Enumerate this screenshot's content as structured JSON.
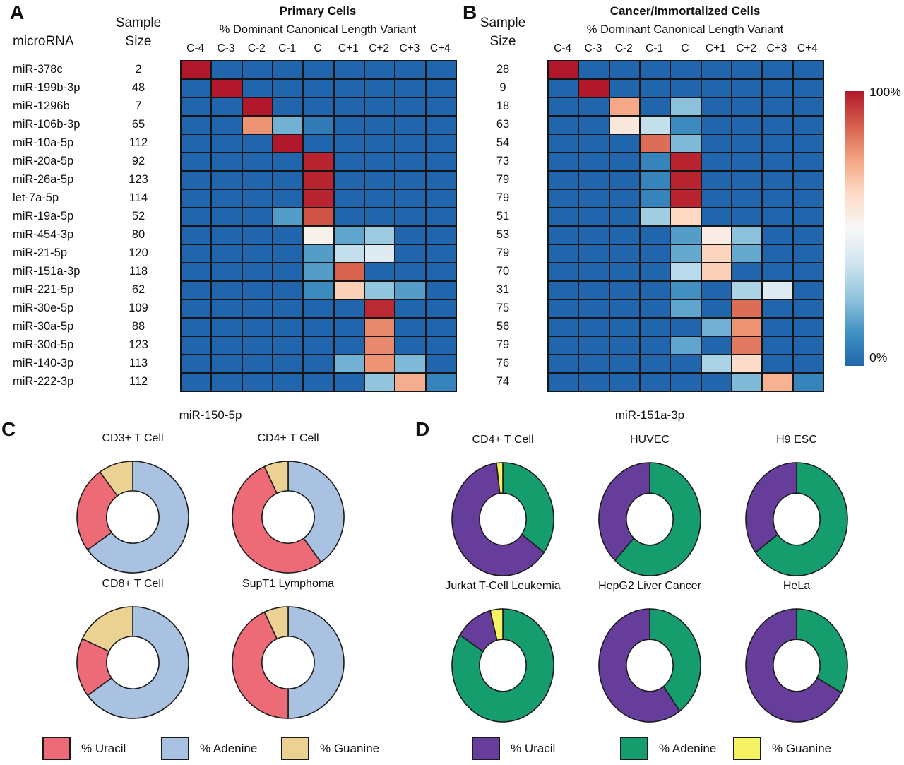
{
  "figure": {
    "panels": {
      "a": {
        "letter": "A",
        "mirna_header": "microRNA",
        "size_header": "Sample\nSize"
      },
      "b": {
        "letter": "B",
        "size_header": "Sample\nSize"
      },
      "c": {
        "letter": "C"
      },
      "d": {
        "letter": "D"
      }
    },
    "colorbar": {
      "max_label": "100%",
      "min_label": "0%"
    }
  },
  "chart_data": [
    {
      "type": "heatmap",
      "panel": "A",
      "title": "Primary Cells",
      "subtitle": "% Dominant Canonical Length Variant",
      "columns": [
        "C-4",
        "C-3",
        "C-2",
        "C-1",
        "C",
        "C+1",
        "C+2",
        "C+3",
        "C+4"
      ],
      "scale": {
        "min": 0,
        "max": 100,
        "min_color": "#2166ac",
        "mid_color": "#f7f7f7",
        "max_color": "#b2182b"
      },
      "rows": [
        {
          "mirna": "miR-378c",
          "sample_size": 2,
          "values": [
            100,
            0,
            0,
            0,
            0,
            0,
            0,
            0,
            0
          ]
        },
        {
          "mirna": "miR-199b-3p",
          "sample_size": 48,
          "values": [
            0,
            100,
            0,
            0,
            0,
            0,
            0,
            0,
            0
          ]
        },
        {
          "mirna": "miR-1296b",
          "sample_size": 7,
          "values": [
            0,
            0,
            100,
            0,
            0,
            0,
            0,
            0,
            0
          ]
        },
        {
          "mirna": "miR-106b-3p",
          "sample_size": 65,
          "values": [
            0,
            0,
            78,
            20,
            6,
            0,
            0,
            0,
            0
          ]
        },
        {
          "mirna": "miR-10a-5p",
          "sample_size": 112,
          "values": [
            0,
            0,
            0,
            100,
            0,
            0,
            0,
            0,
            0
          ]
        },
        {
          "mirna": "miR-20a-5p",
          "sample_size": 92,
          "values": [
            0,
            0,
            0,
            0,
            98,
            0,
            0,
            0,
            0
          ]
        },
        {
          "mirna": "miR-26a-5p",
          "sample_size": 123,
          "values": [
            0,
            0,
            0,
            0,
            98,
            0,
            0,
            0,
            0
          ]
        },
        {
          "mirna": "let-7a-5p",
          "sample_size": 114,
          "values": [
            0,
            0,
            0,
            0,
            98,
            0,
            0,
            0,
            0
          ]
        },
        {
          "mirna": "miR-19a-5p",
          "sample_size": 52,
          "values": [
            0,
            0,
            0,
            15,
            90,
            0,
            0,
            0,
            0
          ]
        },
        {
          "mirna": "miR-454-3p",
          "sample_size": 80,
          "values": [
            0,
            0,
            0,
            0,
            53,
            17,
            27,
            0,
            0
          ]
        },
        {
          "mirna": "miR-21-5p",
          "sample_size": 120,
          "values": [
            0,
            0,
            0,
            0,
            15,
            35,
            42,
            0,
            0
          ]
        },
        {
          "mirna": "miR-151a-3p",
          "sample_size": 118,
          "values": [
            0,
            0,
            0,
            0,
            15,
            87,
            0,
            0,
            0
          ]
        },
        {
          "mirna": "miR-221-5p",
          "sample_size": 62,
          "values": [
            0,
            0,
            0,
            0,
            10,
            65,
            25,
            15,
            0
          ]
        },
        {
          "mirna": "miR-30e-5p",
          "sample_size": 109,
          "values": [
            0,
            0,
            0,
            0,
            0,
            0,
            97,
            0,
            0
          ]
        },
        {
          "mirna": "miR-30a-5p",
          "sample_size": 88,
          "values": [
            0,
            0,
            0,
            0,
            0,
            0,
            80,
            0,
            0
          ]
        },
        {
          "mirna": "miR-30d-5p",
          "sample_size": 123,
          "values": [
            0,
            0,
            0,
            0,
            0,
            0,
            80,
            0,
            0
          ]
        },
        {
          "mirna": "miR-140-3p",
          "sample_size": 113,
          "values": [
            0,
            0,
            0,
            0,
            0,
            20,
            78,
            22,
            0
          ]
        },
        {
          "mirna": "miR-222-3p",
          "sample_size": 112,
          "values": [
            0,
            0,
            0,
            0,
            0,
            0,
            25,
            73,
            8
          ]
        }
      ]
    },
    {
      "type": "heatmap",
      "panel": "B",
      "title": "Cancer/Immortalized Cells",
      "subtitle": "% Dominant Canonical Length Variant",
      "columns": [
        "C-4",
        "C-3",
        "C-2",
        "C-1",
        "C",
        "C+1",
        "C+2",
        "C+3",
        "C+4"
      ],
      "scale": {
        "min": 0,
        "max": 100,
        "min_color": "#2166ac",
        "mid_color": "#f7f7f7",
        "max_color": "#b2182b"
      },
      "rows": [
        {
          "mirna": "miR-378c",
          "sample_size": 28,
          "values": [
            100,
            0,
            0,
            0,
            0,
            0,
            0,
            0,
            0
          ]
        },
        {
          "mirna": "miR-199b-3p",
          "sample_size": 9,
          "values": [
            0,
            100,
            0,
            0,
            0,
            0,
            0,
            0,
            0
          ]
        },
        {
          "mirna": "miR-1296b",
          "sample_size": 18,
          "values": [
            0,
            0,
            74,
            0,
            24,
            0,
            0,
            0,
            0
          ]
        },
        {
          "mirna": "miR-106b-3p",
          "sample_size": 63,
          "values": [
            0,
            0,
            57,
            35,
            10,
            0,
            0,
            0,
            0
          ]
        },
        {
          "mirna": "miR-10a-5p",
          "sample_size": 54,
          "values": [
            0,
            0,
            0,
            85,
            22,
            0,
            0,
            0,
            0
          ]
        },
        {
          "mirna": "miR-20a-5p",
          "sample_size": 73,
          "values": [
            0,
            0,
            0,
            8,
            98,
            0,
            0,
            0,
            0
          ]
        },
        {
          "mirna": "miR-26a-5p",
          "sample_size": 79,
          "values": [
            0,
            0,
            0,
            8,
            98,
            0,
            0,
            0,
            0
          ]
        },
        {
          "mirna": "let-7a-5p",
          "sample_size": 79,
          "values": [
            0,
            0,
            0,
            8,
            98,
            0,
            0,
            0,
            0
          ]
        },
        {
          "mirna": "miR-19a-5p",
          "sample_size": 51,
          "values": [
            0,
            0,
            0,
            28,
            63,
            0,
            0,
            0,
            0
          ]
        },
        {
          "mirna": "miR-454-3p",
          "sample_size": 53,
          "values": [
            0,
            0,
            0,
            0,
            15,
            55,
            24,
            0,
            0
          ]
        },
        {
          "mirna": "miR-21-5p",
          "sample_size": 79,
          "values": [
            0,
            0,
            0,
            0,
            18,
            64,
            18,
            0,
            0
          ]
        },
        {
          "mirna": "miR-151a-3p",
          "sample_size": 70,
          "values": [
            0,
            0,
            0,
            0,
            33,
            65,
            0,
            0,
            0
          ]
        },
        {
          "mirna": "miR-221-5p",
          "sample_size": 31,
          "values": [
            0,
            0,
            0,
            0,
            12,
            0,
            30,
            42,
            0
          ]
        },
        {
          "mirna": "miR-30e-5p",
          "sample_size": 75,
          "values": [
            0,
            0,
            0,
            0,
            17,
            0,
            85,
            0,
            0
          ]
        },
        {
          "mirna": "miR-30a-5p",
          "sample_size": 56,
          "values": [
            0,
            0,
            0,
            0,
            0,
            20,
            78,
            0,
            0
          ]
        },
        {
          "mirna": "miR-30d-5p",
          "sample_size": 79,
          "values": [
            0,
            0,
            0,
            0,
            17,
            0,
            83,
            0,
            0
          ]
        },
        {
          "mirna": "miR-140-3p",
          "sample_size": 76,
          "values": [
            0,
            0,
            0,
            0,
            0,
            30,
            62,
            0,
            0
          ]
        },
        {
          "mirna": "miR-222-3p",
          "sample_size": 74,
          "values": [
            0,
            0,
            0,
            0,
            0,
            0,
            22,
            72,
            8
          ]
        }
      ]
    },
    {
      "type": "donut-group",
      "panel": "C",
      "title": "miR-150-5p",
      "legend": [
        {
          "label": "% Uracil",
          "color": "#ed6a77"
        },
        {
          "label": "% Adenine",
          "color": "#a9c2e1"
        },
        {
          "label": "% Guanine",
          "color": "#ebd192"
        }
      ],
      "donuts": [
        {
          "label": "CD3+ T Cell",
          "slices": [
            {
              "name": "% Adenine",
              "color": "#a9c2e1",
              "value": 65
            },
            {
              "name": "% Uracil",
              "color": "#ed6a77",
              "value": 25
            },
            {
              "name": "% Guanine",
              "color": "#ebd192",
              "value": 10
            }
          ]
        },
        {
          "label": "CD4+ T Cell",
          "slices": [
            {
              "name": "% Adenine",
              "color": "#a9c2e1",
              "value": 40
            },
            {
              "name": "% Uracil",
              "color": "#ed6a77",
              "value": 53
            },
            {
              "name": "% Guanine",
              "color": "#ebd192",
              "value": 7
            }
          ]
        },
        {
          "label": "CD8+ T Cell",
          "slices": [
            {
              "name": "% Adenine",
              "color": "#a9c2e1",
              "value": 65
            },
            {
              "name": "% Uracil",
              "color": "#ed6a77",
              "value": 17
            },
            {
              "name": "% Guanine",
              "color": "#ebd192",
              "value": 18
            }
          ]
        },
        {
          "label": "SupT1 Lymphoma",
          "slices": [
            {
              "name": "% Adenine",
              "color": "#a9c2e1",
              "value": 50
            },
            {
              "name": "% Uracil",
              "color": "#ed6a77",
              "value": 43
            },
            {
              "name": "% Guanine",
              "color": "#ebd192",
              "value": 7
            }
          ]
        }
      ]
    },
    {
      "type": "donut-group",
      "panel": "D",
      "title": "miR-151a-3p",
      "legend": [
        {
          "label": "% Uracil",
          "color": "#673d9b"
        },
        {
          "label": "% Adenine",
          "color": "#169d6e"
        },
        {
          "label": "% Guanine",
          "color": "#f5f263"
        }
      ],
      "donuts": [
        {
          "label": "CD4+ T Cell",
          "slices": [
            {
              "name": "% Adenine",
              "color": "#169d6e",
              "value": 35
            },
            {
              "name": "% Uracil",
              "color": "#673d9b",
              "value": 63
            },
            {
              "name": "% Guanine",
              "color": "#f5f263",
              "value": 2
            }
          ]
        },
        {
          "label": "HUVEC",
          "slices": [
            {
              "name": "% Adenine",
              "color": "#169d6e",
              "value": 62
            },
            {
              "name": "% Uracil",
              "color": "#673d9b",
              "value": 38
            },
            {
              "name": "% Guanine",
              "color": "#f5f263",
              "value": 0
            }
          ]
        },
        {
          "label": "H9 ESC",
          "slices": [
            {
              "name": "% Adenine",
              "color": "#169d6e",
              "value": 65
            },
            {
              "name": "% Uracil",
              "color": "#673d9b",
              "value": 35
            },
            {
              "name": "% Guanine",
              "color": "#f5f263",
              "value": 0
            }
          ]
        },
        {
          "label": "Jurkat T-Cell Leukemia",
          "slices": [
            {
              "name": "% Adenine",
              "color": "#169d6e",
              "value": 84
            },
            {
              "name": "% Uracil",
              "color": "#673d9b",
              "value": 12
            },
            {
              "name": "% Guanine",
              "color": "#f5f263",
              "value": 4
            }
          ]
        },
        {
          "label": "HepG2 Liver Cancer",
          "slices": [
            {
              "name": "% Adenine",
              "color": "#169d6e",
              "value": 40
            },
            {
              "name": "% Uracil",
              "color": "#673d9b",
              "value": 60
            },
            {
              "name": "% Guanine",
              "color": "#f5f263",
              "value": 0
            }
          ]
        },
        {
          "label": "HeLa",
          "slices": [
            {
              "name": "% Adenine",
              "color": "#169d6e",
              "value": 33
            },
            {
              "name": "% Uracil",
              "color": "#673d9b",
              "value": 67
            },
            {
              "name": "% Guanine",
              "color": "#f5f263",
              "value": 0
            }
          ]
        }
      ]
    }
  ]
}
